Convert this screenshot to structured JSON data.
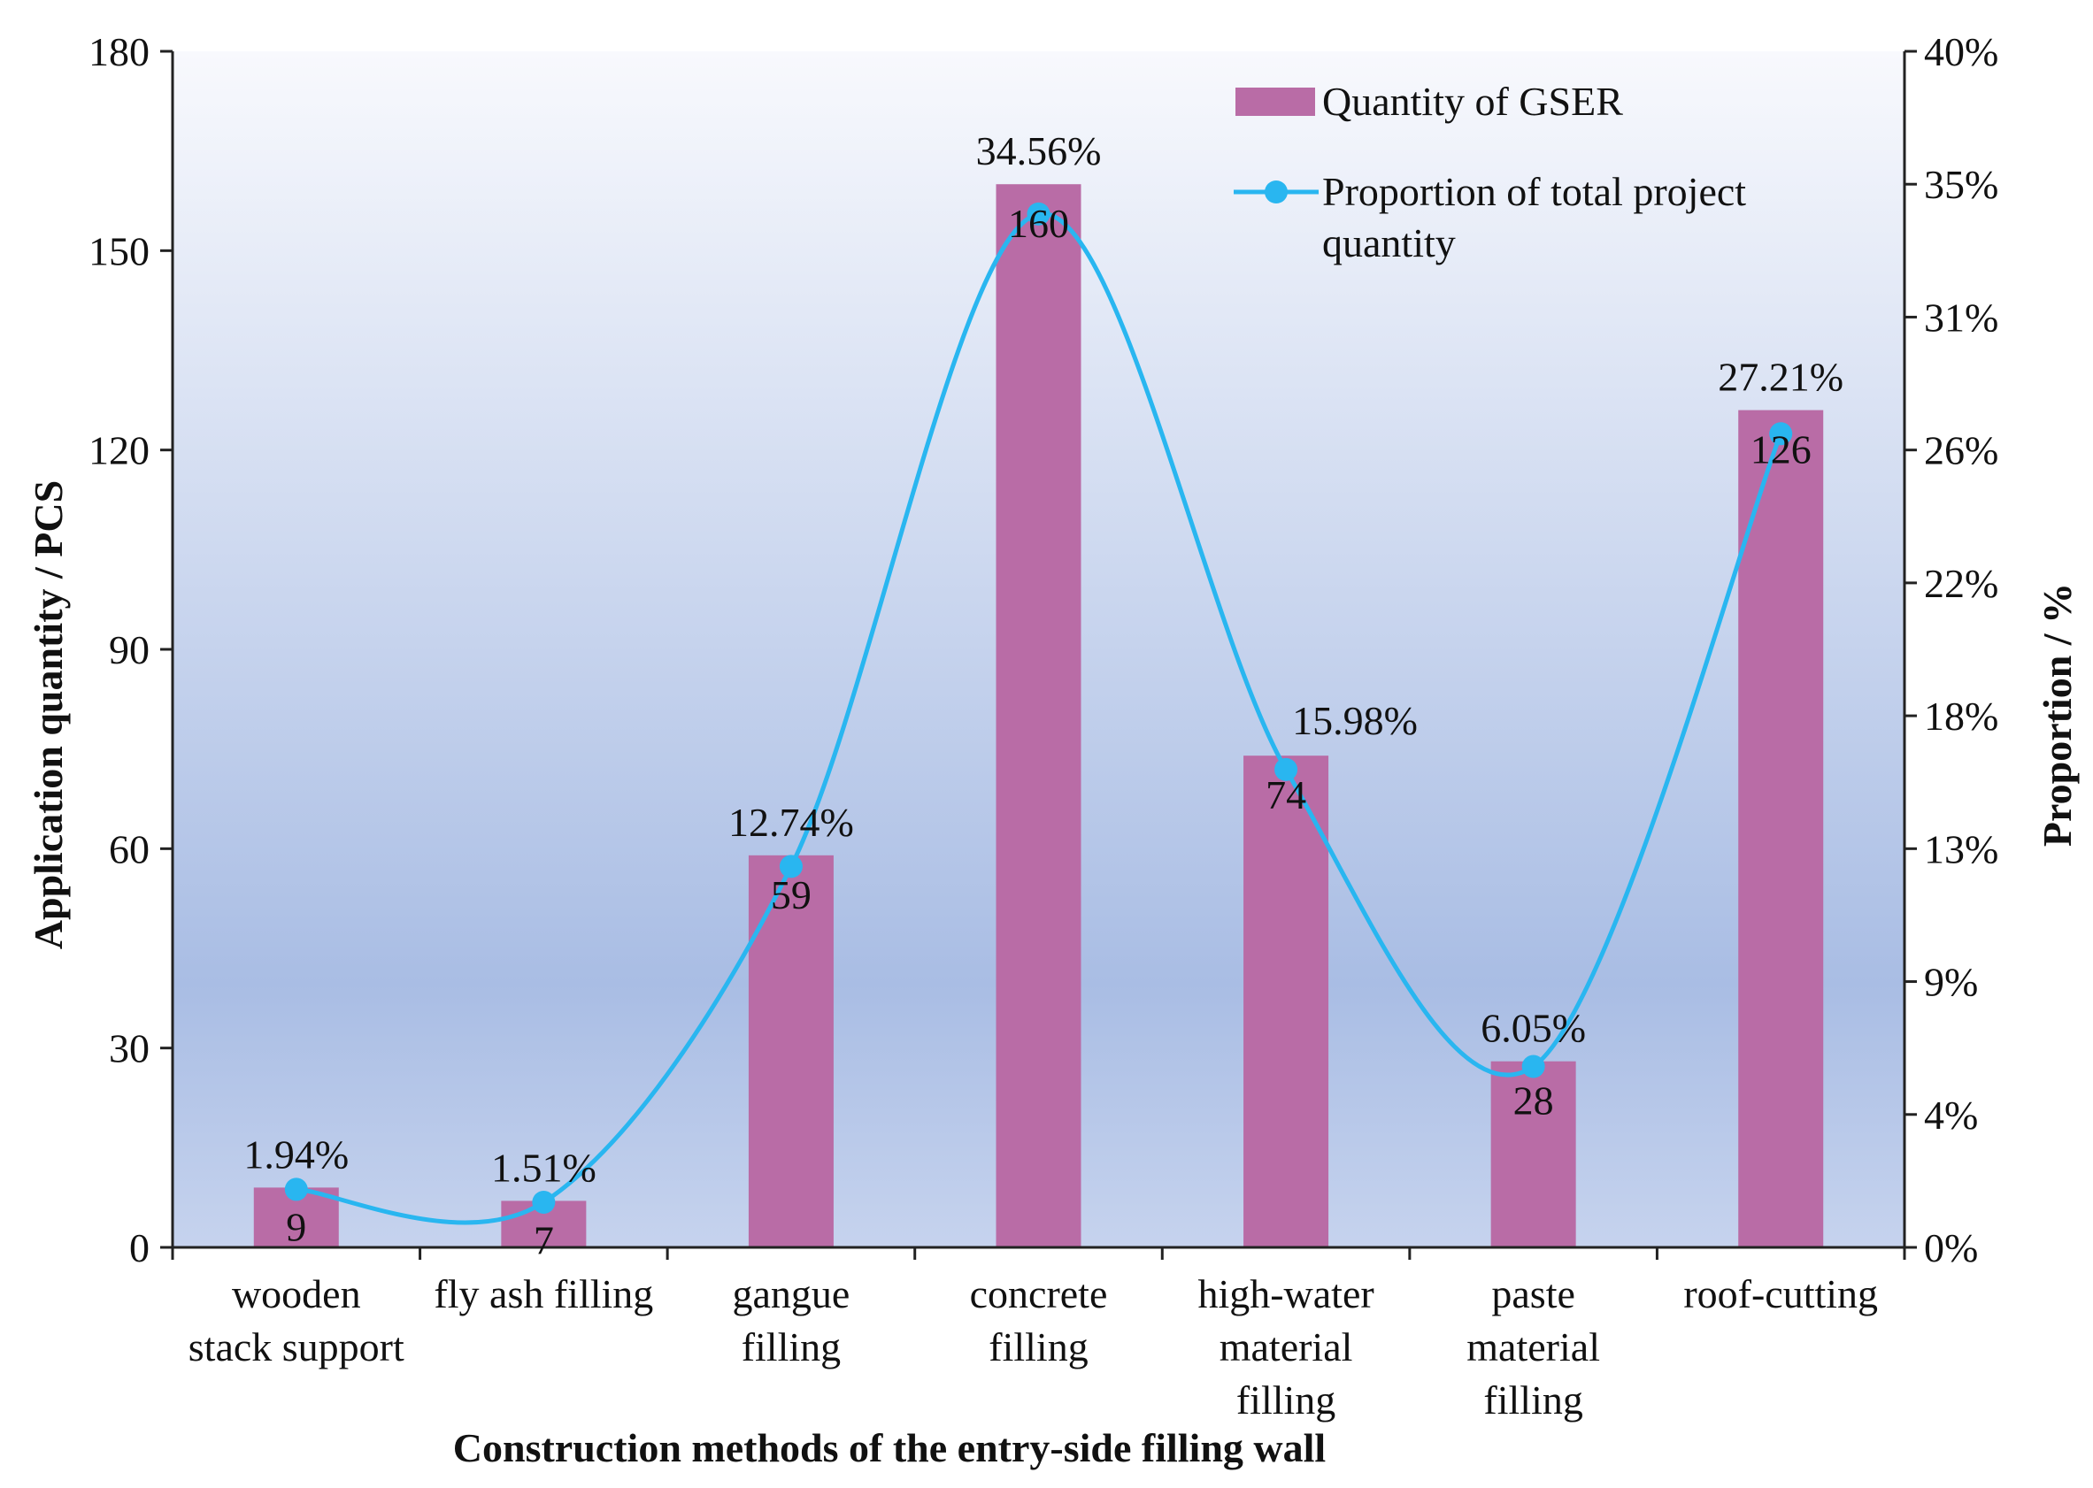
{
  "chart_data": {
    "type": "bar",
    "title": "",
    "xlabel": "Construction methods of the entry-side filling  wall",
    "ylabel": "Application quantity / PCS",
    "y2label": "Proportion / %",
    "categories": [
      [
        "wooden",
        "stack support"
      ],
      [
        "fly ash filling"
      ],
      [
        "gangue",
        "filling"
      ],
      [
        "concrete",
        "filling"
      ],
      [
        "high-water",
        "material",
        "filling"
      ],
      [
        "paste",
        "material",
        "filling"
      ],
      [
        "roof-cutting"
      ]
    ],
    "ylim": [
      0,
      180
    ],
    "yticks": [
      "0",
      "30",
      "60",
      "90",
      "120",
      "150",
      "180"
    ],
    "y2lim": [
      0,
      40
    ],
    "y2ticks": [
      "0%",
      "4%",
      "9%",
      "13%",
      "18%",
      "22%",
      "26%",
      "31%",
      "35%",
      "40%"
    ],
    "legend_position": "top-right",
    "grid": false,
    "series": [
      {
        "name": "Quantity of GSER",
        "type": "bar",
        "axis": "left",
        "color": "#b96ca6",
        "values": [
          9,
          7,
          59,
          160,
          74,
          28,
          126
        ],
        "labels": [
          "9",
          "7",
          "59",
          "160",
          "74",
          "28",
          "126"
        ]
      },
      {
        "name": "Proportion of total project quantity",
        "name_lines": [
          "Proportion of total project",
          "quantity"
        ],
        "type": "line",
        "smooth": true,
        "axis": "right",
        "color": "#29b6f0",
        "values": [
          1.94,
          1.51,
          12.74,
          34.56,
          15.98,
          6.05,
          27.21
        ],
        "labels": [
          "1.94%",
          "1.51%",
          "12.74%",
          "34.56%",
          "15.98%",
          "6.05%",
          "27.21%"
        ]
      }
    ]
  }
}
